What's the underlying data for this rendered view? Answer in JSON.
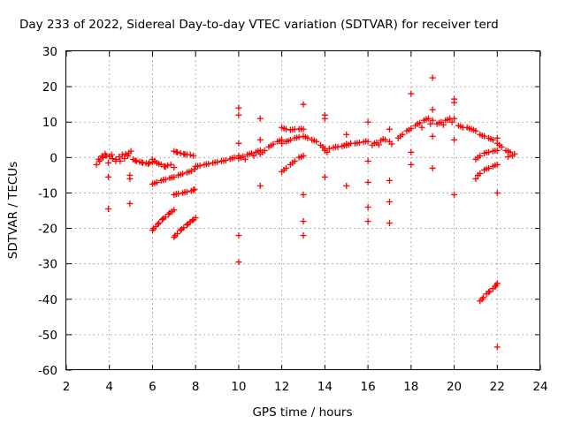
{
  "chart_data": {
    "type": "scatter",
    "title": "Day 233 of 2022, Sidereal Day-to-day VTEC variation (SDTVAR) for receiver terd",
    "xlabel": "GPS time / hours",
    "ylabel": "SDTVAR / TECUs",
    "xlim": [
      2,
      24
    ],
    "ylim": [
      -60,
      30
    ],
    "xticks": [
      2,
      4,
      6,
      8,
      10,
      12,
      14,
      16,
      18,
      20,
      22,
      24
    ],
    "yticks": [
      -60,
      -50,
      -40,
      -30,
      -20,
      -10,
      0,
      10,
      20,
      30
    ],
    "grid": true,
    "marker": "+",
    "color": "#ff0000",
    "series": [
      {
        "name": "SDTVAR",
        "points": [
          [
            3.4,
            -2.0
          ],
          [
            3.55,
            -1.0
          ],
          [
            3.7,
            0.0
          ],
          [
            3.85,
            0.5
          ],
          [
            4.0,
            0.3
          ],
          [
            4.15,
            -0.3
          ],
          [
            4.3,
            -1.0
          ],
          [
            3.5,
            -0.5
          ],
          [
            3.65,
            0.4
          ],
          [
            3.8,
            1.0
          ],
          [
            3.95,
            -1.5
          ],
          [
            4.1,
            0.8
          ],
          [
            4.3,
            -0.5
          ],
          [
            4.45,
            0.2
          ],
          [
            4.6,
            0.8
          ],
          [
            4.75,
            1.0
          ],
          [
            4.9,
            1.3
          ],
          [
            5.0,
            1.8
          ],
          [
            4.5,
            -1.0
          ],
          [
            4.7,
            -0.3
          ],
          [
            4.85,
            0.5
          ],
          [
            5.1,
            -0.5
          ],
          [
            5.25,
            -1.0
          ],
          [
            5.4,
            -1.2
          ],
          [
            5.55,
            -1.5
          ],
          [
            5.7,
            -1.6
          ],
          [
            5.85,
            -1.5
          ],
          [
            6.0,
            -1.3
          ],
          [
            5.2,
            -0.8
          ],
          [
            5.5,
            -1.3
          ],
          [
            5.8,
            -1.8
          ],
          [
            6.0,
            -0.5
          ],
          [
            6.2,
            -1.5
          ],
          [
            6.4,
            -2.0
          ],
          [
            6.55,
            -2.5
          ],
          [
            6.7,
            -2.2
          ],
          [
            6.85,
            -2.0
          ],
          [
            7.0,
            -2.8
          ],
          [
            6.1,
            -1.0
          ],
          [
            6.3,
            -1.8
          ],
          [
            6.6,
            -2.6
          ],
          [
            6.0,
            -7.5
          ],
          [
            6.2,
            -7.0
          ],
          [
            6.4,
            -6.5
          ],
          [
            6.6,
            -6.2
          ],
          [
            6.8,
            -5.8
          ],
          [
            7.0,
            -5.5
          ],
          [
            7.2,
            -5.0
          ],
          [
            7.4,
            -4.6
          ],
          [
            7.6,
            -4.2
          ],
          [
            7.8,
            -3.8
          ],
          [
            7.95,
            -3.3
          ],
          [
            6.1,
            -7.2
          ],
          [
            6.5,
            -6.3
          ],
          [
            6.9,
            -5.6
          ],
          [
            7.3,
            -4.8
          ],
          [
            7.7,
            -4.0
          ],
          [
            7.0,
            -10.5
          ],
          [
            7.2,
            -10.2
          ],
          [
            7.4,
            -10.0
          ],
          [
            7.6,
            -9.7
          ],
          [
            7.8,
            -9.4
          ],
          [
            7.95,
            -9.0
          ],
          [
            7.1,
            -10.3
          ],
          [
            7.5,
            -9.8
          ],
          [
            7.9,
            -9.2
          ],
          [
            6.0,
            -20.5
          ],
          [
            6.15,
            -19.5
          ],
          [
            6.3,
            -18.5
          ],
          [
            6.45,
            -17.5
          ],
          [
            6.6,
            -16.8
          ],
          [
            6.75,
            -16.0
          ],
          [
            6.9,
            -15.2
          ],
          [
            7.0,
            -14.8
          ],
          [
            6.05,
            -20.0
          ],
          [
            6.25,
            -18.8
          ],
          [
            6.5,
            -17.2
          ],
          [
            6.8,
            -15.6
          ],
          [
            7.0,
            -22.5
          ],
          [
            7.15,
            -21.5
          ],
          [
            7.3,
            -20.5
          ],
          [
            7.45,
            -19.8
          ],
          [
            7.6,
            -19.0
          ],
          [
            7.75,
            -18.2
          ],
          [
            7.9,
            -17.5
          ],
          [
            8.0,
            -17.0
          ],
          [
            7.05,
            -22.0
          ],
          [
            7.35,
            -20.2
          ],
          [
            7.65,
            -18.7
          ],
          [
            7.85,
            -17.8
          ],
          [
            7.0,
            1.8
          ],
          [
            7.15,
            1.5
          ],
          [
            7.3,
            1.2
          ],
          [
            7.45,
            1.0
          ],
          [
            7.6,
            0.8
          ],
          [
            7.75,
            0.8
          ],
          [
            7.9,
            0.5
          ],
          [
            7.1,
            1.6
          ],
          [
            7.5,
            0.9
          ],
          [
            8.0,
            -2.5
          ],
          [
            8.2,
            -2.3
          ],
          [
            8.4,
            -2.0
          ],
          [
            8.6,
            -1.8
          ],
          [
            8.8,
            -1.5
          ],
          [
            9.0,
            -1.3
          ],
          [
            8.1,
            -2.4
          ],
          [
            8.5,
            -1.9
          ],
          [
            8.9,
            -1.4
          ],
          [
            9.2,
            -1.0
          ],
          [
            9.4,
            -0.8
          ],
          [
            9.6,
            -0.4
          ],
          [
            9.8,
            0.0
          ],
          [
            10.0,
            0.5
          ],
          [
            9.3,
            -0.9
          ],
          [
            9.7,
            -0.2
          ],
          [
            10.0,
            -0.3
          ],
          [
            10.2,
            0.3
          ],
          [
            10.4,
            0.8
          ],
          [
            10.6,
            1.2
          ],
          [
            10.8,
            1.5
          ],
          [
            11.0,
            2.0
          ],
          [
            10.1,
            0.0
          ],
          [
            10.5,
            1.0
          ],
          [
            10.9,
            1.8
          ],
          [
            10.3,
            -0.5
          ],
          [
            10.7,
            0.5
          ],
          [
            11.0,
            1.0
          ],
          [
            11.2,
            2.0
          ],
          [
            11.4,
            3.0
          ],
          [
            11.6,
            3.8
          ],
          [
            11.8,
            4.5
          ],
          [
            12.0,
            5.0
          ],
          [
            11.1,
            1.5
          ],
          [
            11.5,
            3.4
          ],
          [
            11.9,
            4.8
          ],
          [
            12.0,
            8.5
          ],
          [
            12.2,
            8.0
          ],
          [
            12.4,
            7.8
          ],
          [
            12.6,
            8.0
          ],
          [
            12.8,
            8.0
          ],
          [
            13.0,
            8.0
          ],
          [
            12.1,
            8.2
          ],
          [
            12.5,
            7.9
          ],
          [
            12.9,
            8.1
          ],
          [
            12.0,
            4.0
          ],
          [
            12.2,
            4.5
          ],
          [
            12.4,
            5.0
          ],
          [
            12.6,
            5.5
          ],
          [
            12.8,
            5.8
          ],
          [
            13.0,
            6.0
          ],
          [
            13.2,
            5.5
          ],
          [
            13.4,
            5.0
          ],
          [
            13.6,
            4.5
          ],
          [
            13.8,
            3.5
          ],
          [
            14.0,
            2.5
          ],
          [
            12.3,
            4.7
          ],
          [
            12.7,
            5.6
          ],
          [
            13.1,
            5.8
          ],
          [
            13.5,
            4.8
          ],
          [
            13.9,
            3.0
          ],
          [
            12.0,
            -4.0
          ],
          [
            12.2,
            -3.0
          ],
          [
            12.4,
            -2.0
          ],
          [
            12.6,
            -1.0
          ],
          [
            12.8,
            0.0
          ],
          [
            13.0,
            0.5
          ],
          [
            12.1,
            -3.5
          ],
          [
            12.5,
            -1.5
          ],
          [
            12.9,
            0.2
          ],
          [
            14.0,
            2.0
          ],
          [
            14.2,
            2.5
          ],
          [
            14.4,
            2.8
          ],
          [
            14.6,
            3.0
          ],
          [
            14.8,
            3.2
          ],
          [
            15.0,
            3.5
          ],
          [
            14.1,
            1.5
          ],
          [
            14.5,
            3.0
          ],
          [
            14.9,
            3.4
          ],
          [
            15.0,
            3.8
          ],
          [
            15.2,
            4.0
          ],
          [
            15.4,
            4.0
          ],
          [
            15.6,
            4.2
          ],
          [
            15.8,
            4.4
          ],
          [
            16.0,
            4.5
          ],
          [
            15.1,
            3.6
          ],
          [
            15.5,
            4.1
          ],
          [
            15.9,
            4.6
          ],
          [
            16.2,
            3.5
          ],
          [
            16.4,
            4.2
          ],
          [
            16.6,
            4.8
          ],
          [
            16.8,
            5.0
          ],
          [
            17.0,
            4.5
          ],
          [
            17.1,
            3.8
          ],
          [
            16.3,
            4.0
          ],
          [
            16.7,
            5.2
          ],
          [
            16.5,
            3.6
          ],
          [
            17.4,
            5.5
          ],
          [
            17.6,
            6.5
          ],
          [
            17.8,
            7.5
          ],
          [
            18.0,
            8.2
          ],
          [
            18.2,
            9.0
          ],
          [
            18.4,
            9.8
          ],
          [
            18.6,
            10.5
          ],
          [
            18.8,
            11.0
          ],
          [
            19.0,
            10.5
          ],
          [
            17.5,
            6.0
          ],
          [
            17.9,
            7.8
          ],
          [
            18.3,
            9.5
          ],
          [
            18.7,
            10.8
          ],
          [
            18.5,
            8.5
          ],
          [
            18.9,
            9.5
          ],
          [
            19.2,
            9.5
          ],
          [
            19.4,
            10.0
          ],
          [
            19.6,
            10.5
          ],
          [
            19.8,
            11.0
          ],
          [
            20.0,
            11.0
          ],
          [
            19.3,
            9.8
          ],
          [
            19.7,
            10.7
          ],
          [
            19.5,
            9.2
          ],
          [
            19.9,
            10.0
          ],
          [
            20.2,
            9.0
          ],
          [
            20.4,
            8.5
          ],
          [
            20.6,
            8.5
          ],
          [
            20.8,
            8.0
          ],
          [
            21.0,
            7.5
          ],
          [
            20.3,
            8.8
          ],
          [
            20.7,
            8.2
          ],
          [
            20.9,
            7.8
          ],
          [
            21.2,
            6.5
          ],
          [
            21.4,
            6.0
          ],
          [
            21.6,
            5.5
          ],
          [
            21.8,
            5.0
          ],
          [
            22.0,
            4.0
          ],
          [
            22.2,
            3.0
          ],
          [
            22.4,
            2.0
          ],
          [
            22.6,
            1.5
          ],
          [
            22.8,
            1.0
          ],
          [
            21.3,
            6.2
          ],
          [
            21.7,
            5.2
          ],
          [
            22.1,
            3.5
          ],
          [
            22.5,
            1.8
          ],
          [
            22.7,
            0.5
          ],
          [
            22.5,
            0.2
          ],
          [
            21.0,
            -0.5
          ],
          [
            21.2,
            0.5
          ],
          [
            21.4,
            1.2
          ],
          [
            21.6,
            1.5
          ],
          [
            21.8,
            1.8
          ],
          [
            22.0,
            2.0
          ],
          [
            21.1,
            0.0
          ],
          [
            21.5,
            1.4
          ],
          [
            21.9,
            1.9
          ],
          [
            21.0,
            -6.0
          ],
          [
            21.2,
            -4.5
          ],
          [
            21.4,
            -3.5
          ],
          [
            21.6,
            -3.0
          ],
          [
            21.8,
            -2.5
          ],
          [
            22.0,
            -2.0
          ],
          [
            21.1,
            -5.0
          ],
          [
            21.5,
            -3.2
          ],
          [
            21.9,
            -2.2
          ],
          [
            21.2,
            -40.5
          ],
          [
            21.35,
            -39.5
          ],
          [
            21.5,
            -38.5
          ],
          [
            21.65,
            -37.8
          ],
          [
            21.8,
            -37.0
          ],
          [
            21.95,
            -36.0
          ],
          [
            22.0,
            -35.5
          ],
          [
            21.3,
            -40.0
          ],
          [
            21.6,
            -38.0
          ],
          [
            21.9,
            -36.5
          ],
          [
            3.95,
            -5.5
          ],
          [
            3.95,
            -14.5
          ],
          [
            4.95,
            -5.0
          ],
          [
            4.95,
            -6.0
          ],
          [
            4.95,
            -13.0
          ],
          [
            10.0,
            14.0
          ],
          [
            10.0,
            12.0
          ],
          [
            10.0,
            4.0
          ],
          [
            10.0,
            -22.0
          ],
          [
            10.0,
            -29.5
          ],
          [
            11.0,
            11.0
          ],
          [
            11.0,
            5.0
          ],
          [
            11.0,
            -8.0
          ],
          [
            13.0,
            15.0
          ],
          [
            13.0,
            -10.5
          ],
          [
            13.0,
            -18.0
          ],
          [
            13.0,
            -22.0
          ],
          [
            14.0,
            12.0
          ],
          [
            14.0,
            11.0
          ],
          [
            14.0,
            -5.5
          ],
          [
            15.0,
            6.5
          ],
          [
            15.0,
            -8.0
          ],
          [
            16.0,
            10.0
          ],
          [
            16.0,
            -1.0
          ],
          [
            16.0,
            -7.0
          ],
          [
            16.0,
            -14.0
          ],
          [
            16.0,
            -18.0
          ],
          [
            17.0,
            8.0
          ],
          [
            17.0,
            -6.5
          ],
          [
            17.0,
            -12.5
          ],
          [
            17.0,
            -18.5
          ],
          [
            18.0,
            18.0
          ],
          [
            18.0,
            1.5
          ],
          [
            18.0,
            -2.0
          ],
          [
            19.0,
            22.5
          ],
          [
            19.0,
            13.5
          ],
          [
            19.0,
            6.0
          ],
          [
            19.0,
            -3.0
          ],
          [
            20.0,
            16.5
          ],
          [
            20.0,
            15.5
          ],
          [
            20.0,
            5.0
          ],
          [
            20.0,
            -10.5
          ],
          [
            22.0,
            5.5
          ],
          [
            22.0,
            -10.0
          ],
          [
            22.0,
            -53.5
          ]
        ]
      }
    ]
  }
}
